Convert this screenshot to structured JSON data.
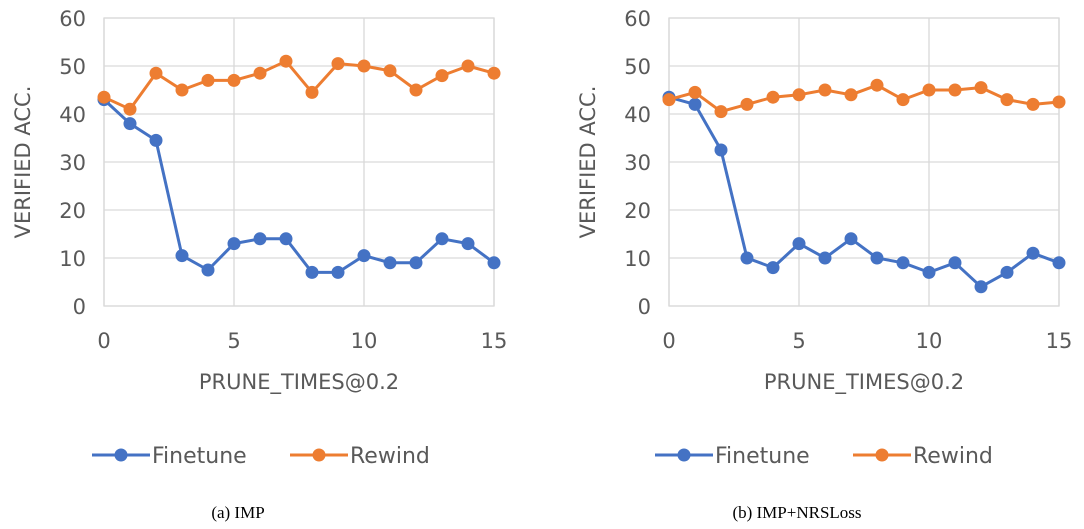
{
  "chart_data": [
    {
      "type": "line",
      "caption": "(a)  IMP",
      "xlabel": "PRUNE_TIMES@0.2",
      "ylabel": "VERIFIED ACC.",
      "xlim": [
        0,
        15
      ],
      "ylim": [
        0,
        60
      ],
      "xticks": [
        0,
        5,
        10,
        15
      ],
      "yticks": [
        0,
        10,
        20,
        30,
        40,
        50,
        60
      ],
      "grid": true,
      "legend_position": "bottom",
      "x": [
        0,
        1,
        2,
        3,
        4,
        5,
        6,
        7,
        8,
        9,
        10,
        11,
        12,
        13,
        14,
        15
      ],
      "series": [
        {
          "name": "Finetune",
          "color": "#4472c4",
          "values": [
            43,
            38,
            34.5,
            10.5,
            7.5,
            13,
            14,
            14,
            7,
            7,
            10.5,
            9,
            9,
            14,
            13,
            9
          ]
        },
        {
          "name": "Rewind",
          "color": "#ed7d31",
          "values": [
            43.5,
            41,
            48.5,
            45,
            47,
            47,
            48.5,
            51,
            44.5,
            50.5,
            50,
            49,
            45,
            48,
            50,
            48.5
          ]
        }
      ]
    },
    {
      "type": "line",
      "caption": "(b)  IMP+NRSLoss",
      "xlabel": "PRUNE_TIMES@0.2",
      "ylabel": "VERIFIED ACC.",
      "xlim": [
        0,
        15
      ],
      "ylim": [
        0,
        60
      ],
      "xticks": [
        0,
        5,
        10,
        15
      ],
      "yticks": [
        0,
        10,
        20,
        30,
        40,
        50,
        60
      ],
      "grid": true,
      "legend_position": "bottom",
      "x": [
        0,
        1,
        2,
        3,
        4,
        5,
        6,
        7,
        8,
        9,
        10,
        11,
        12,
        13,
        14,
        15
      ],
      "series": [
        {
          "name": "Finetune",
          "color": "#4472c4",
          "values": [
            43.5,
            42,
            32.5,
            10,
            8,
            13,
            10,
            14,
            10,
            9,
            7,
            9,
            4,
            7,
            11,
            9
          ]
        },
        {
          "name": "Rewind",
          "color": "#ed7d31",
          "values": [
            43,
            44.5,
            40.5,
            42,
            43.5,
            44,
            45,
            44,
            46,
            43,
            45,
            45,
            45.5,
            43,
            42,
            42.5
          ]
        }
      ]
    }
  ]
}
